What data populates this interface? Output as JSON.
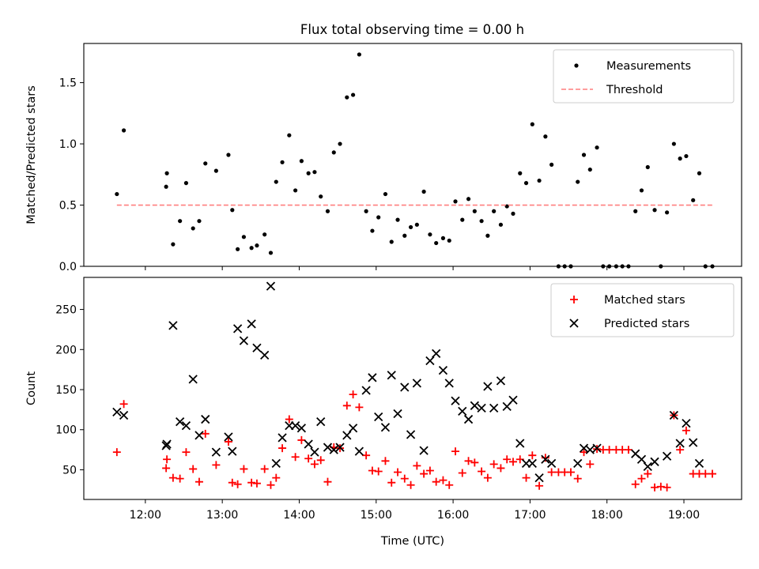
{
  "figure": {
    "title": "Flux total observing time = 0.00 h"
  },
  "chart_data": [
    {
      "type": "scatter",
      "panel": "top",
      "ylabel": "Matched/Predicted stars",
      "xlabel": "",
      "xlim": [
        11.2,
        19.75
      ],
      "ylim": [
        0,
        1.82
      ],
      "yticks": [
        0.0,
        0.5,
        1.0,
        1.5
      ],
      "yticklabels": [
        "0.0",
        "0.5",
        "1.0",
        "1.5"
      ],
      "xticks": [
        12,
        13,
        14,
        15,
        16,
        17,
        18,
        19
      ],
      "show_xticklabels": false,
      "grid": false,
      "legend": {
        "position": "top-right",
        "entries": [
          "Measurements",
          "Threshold"
        ]
      },
      "series": [
        {
          "name": "Measurements",
          "marker": "dot",
          "color": "#000000",
          "x": [
            11.63,
            11.72,
            12.27,
            12.28,
            12.36,
            12.45,
            12.53,
            12.62,
            12.7,
            12.78,
            12.92,
            13.08,
            13.13,
            13.2,
            13.28,
            13.38,
            13.45,
            13.55,
            13.63,
            13.7,
            13.78,
            13.87,
            13.95,
            14.03,
            14.12,
            14.2,
            14.28,
            14.37,
            14.45,
            14.53,
            14.62,
            14.7,
            14.78,
            14.87,
            14.95,
            15.03,
            15.12,
            15.2,
            15.28,
            15.37,
            15.45,
            15.53,
            15.62,
            15.7,
            15.78,
            15.87,
            15.95,
            16.03,
            16.12,
            16.2,
            16.28,
            16.37,
            16.45,
            16.53,
            16.62,
            16.7,
            16.78,
            16.87,
            16.95,
            17.03,
            17.12,
            17.2,
            17.28,
            17.37,
            17.45,
            17.53,
            17.62,
            17.7,
            17.78,
            17.87,
            17.95,
            18.03,
            18.12,
            18.2,
            18.28,
            18.37,
            18.45,
            18.53,
            18.62,
            18.7,
            18.78,
            18.87,
            18.95,
            19.03,
            19.12,
            19.2,
            19.28,
            19.37
          ],
          "y": [
            0.59,
            1.11,
            0.65,
            0.76,
            0.18,
            0.37,
            0.68,
            0.31,
            0.37,
            0.84,
            0.78,
            0.91,
            0.46,
            0.14,
            0.24,
            0.15,
            0.17,
            0.26,
            0.11,
            0.69,
            0.85,
            1.07,
            0.62,
            0.86,
            0.76,
            0.77,
            0.57,
            0.45,
            0.93,
            1.0,
            1.38,
            1.4,
            1.73,
            0.45,
            0.29,
            0.4,
            0.59,
            0.2,
            0.38,
            0.25,
            0.32,
            0.34,
            0.61,
            0.26,
            0.19,
            0.23,
            0.21,
            0.53,
            0.38,
            0.55,
            0.45,
            0.37,
            0.25,
            0.45,
            0.34,
            0.49,
            0.43,
            0.76,
            0.68,
            1.16,
            0.7,
            1.06,
            0.83,
            0.0,
            0.0,
            0.0,
            0.69,
            0.91,
            0.79,
            0.97,
            0.0,
            0.0,
            0.0,
            0.0,
            0.0,
            0.45,
            0.62,
            0.81,
            0.46,
            0.0,
            0.44,
            1.0,
            0.88,
            0.9,
            0.54,
            0.76,
            0.0,
            0.0
          ]
        },
        {
          "name": "Threshold",
          "style": "dashed",
          "color": "#ff7f7f",
          "x": [
            11.63,
            19.37
          ],
          "y": [
            0.5,
            0.5
          ]
        }
      ]
    },
    {
      "type": "scatter",
      "panel": "bottom",
      "ylabel": "Count",
      "xlabel": "Time (UTC)",
      "xlim": [
        11.2,
        19.75
      ],
      "ylim": [
        13,
        290
      ],
      "yticks": [
        50,
        100,
        150,
        200,
        250
      ],
      "yticklabels": [
        "50",
        "100",
        "150",
        "200",
        "250"
      ],
      "xticks": [
        12,
        13,
        14,
        15,
        16,
        17,
        18,
        19
      ],
      "xticklabels": [
        "12:00",
        "13:00",
        "14:00",
        "15:00",
        "16:00",
        "17:00",
        "18:00",
        "19:00"
      ],
      "grid": false,
      "legend": {
        "position": "top-right",
        "entries": [
          "Matched stars",
          "Predicted stars"
        ]
      },
      "series": [
        {
          "name": "Matched stars",
          "marker": "plus",
          "color": "#ff0000",
          "x": [
            11.63,
            11.72,
            12.27,
            12.28,
            12.36,
            12.45,
            12.53,
            12.62,
            12.7,
            12.78,
            12.92,
            13.08,
            13.13,
            13.2,
            13.28,
            13.38,
            13.45,
            13.55,
            13.63,
            13.7,
            13.78,
            13.87,
            13.95,
            14.03,
            14.12,
            14.2,
            14.28,
            14.37,
            14.45,
            14.53,
            14.62,
            14.7,
            14.78,
            14.87,
            14.95,
            15.03,
            15.12,
            15.2,
            15.28,
            15.37,
            15.45,
            15.53,
            15.62,
            15.7,
            15.78,
            15.87,
            15.95,
            16.03,
            16.12,
            16.2,
            16.28,
            16.37,
            16.45,
            16.53,
            16.62,
            16.7,
            16.78,
            16.87,
            16.95,
            17.03,
            17.12,
            17.2,
            17.28,
            17.37,
            17.45,
            17.53,
            17.62,
            17.7,
            17.78,
            17.87,
            17.95,
            18.03,
            18.12,
            18.2,
            18.28,
            18.37,
            18.45,
            18.53,
            18.62,
            18.7,
            18.78,
            18.87,
            18.95,
            19.03,
            19.12,
            19.2,
            19.28,
            19.37
          ],
          "y": [
            72,
            132,
            52,
            63,
            40,
            39,
            72,
            51,
            35,
            95,
            56,
            85,
            34,
            32,
            51,
            34,
            33,
            51,
            31,
            40,
            77,
            113,
            66,
            87,
            64,
            57,
            62,
            35,
            78,
            77,
            130,
            144,
            128,
            68,
            49,
            48,
            61,
            34,
            47,
            39,
            31,
            55,
            45,
            49,
            35,
            37,
            31,
            73,
            46,
            61,
            59,
            48,
            40,
            57,
            52,
            63,
            60,
            63,
            40,
            68,
            30,
            65,
            47,
            47,
            47,
            47,
            39,
            72,
            57,
            76,
            75,
            75,
            75,
            75,
            75,
            32,
            39,
            45,
            28,
            29,
            28,
            118,
            75,
            99,
            45,
            45,
            45,
            45
          ]
        },
        {
          "name": "Predicted stars",
          "marker": "x",
          "color": "#000000",
          "x": [
            11.63,
            11.72,
            12.27,
            12.28,
            12.36,
            12.45,
            12.53,
            12.62,
            12.7,
            12.78,
            12.92,
            13.08,
            13.13,
            13.2,
            13.28,
            13.38,
            13.45,
            13.55,
            13.63,
            13.7,
            13.78,
            13.87,
            13.95,
            14.03,
            14.12,
            14.2,
            14.28,
            14.37,
            14.45,
            14.53,
            14.62,
            14.7,
            14.78,
            14.87,
            14.95,
            15.03,
            15.12,
            15.2,
            15.28,
            15.37,
            15.45,
            15.53,
            15.62,
            15.7,
            15.78,
            15.87,
            15.95,
            16.03,
            16.12,
            16.2,
            16.28,
            16.37,
            16.45,
            16.53,
            16.62,
            16.7,
            16.78,
            16.87,
            16.95,
            17.03,
            17.12,
            17.2,
            17.28,
            17.62,
            17.7,
            17.78,
            17.87,
            18.37,
            18.45,
            18.53,
            18.62,
            18.78,
            18.87,
            18.95,
            19.03,
            19.12,
            19.2
          ],
          "y": [
            122,
            118,
            80,
            82,
            230,
            110,
            105,
            163,
            93,
            113,
            72,
            91,
            73,
            226,
            211,
            232,
            202,
            193,
            279,
            58,
            90,
            105,
            105,
            102,
            82,
            72,
            110,
            78,
            75,
            78,
            93,
            102,
            73,
            149,
            165,
            116,
            103,
            168,
            120,
            153,
            94,
            158,
            74,
            186,
            195,
            174,
            158,
            136,
            123,
            113,
            130,
            127,
            154,
            127,
            161,
            129,
            137,
            83,
            58,
            58,
            40,
            63,
            58,
            58,
            77,
            75,
            77,
            70,
            63,
            54,
            60,
            67,
            118,
            83,
            108,
            84,
            58
          ]
        }
      ]
    }
  ]
}
